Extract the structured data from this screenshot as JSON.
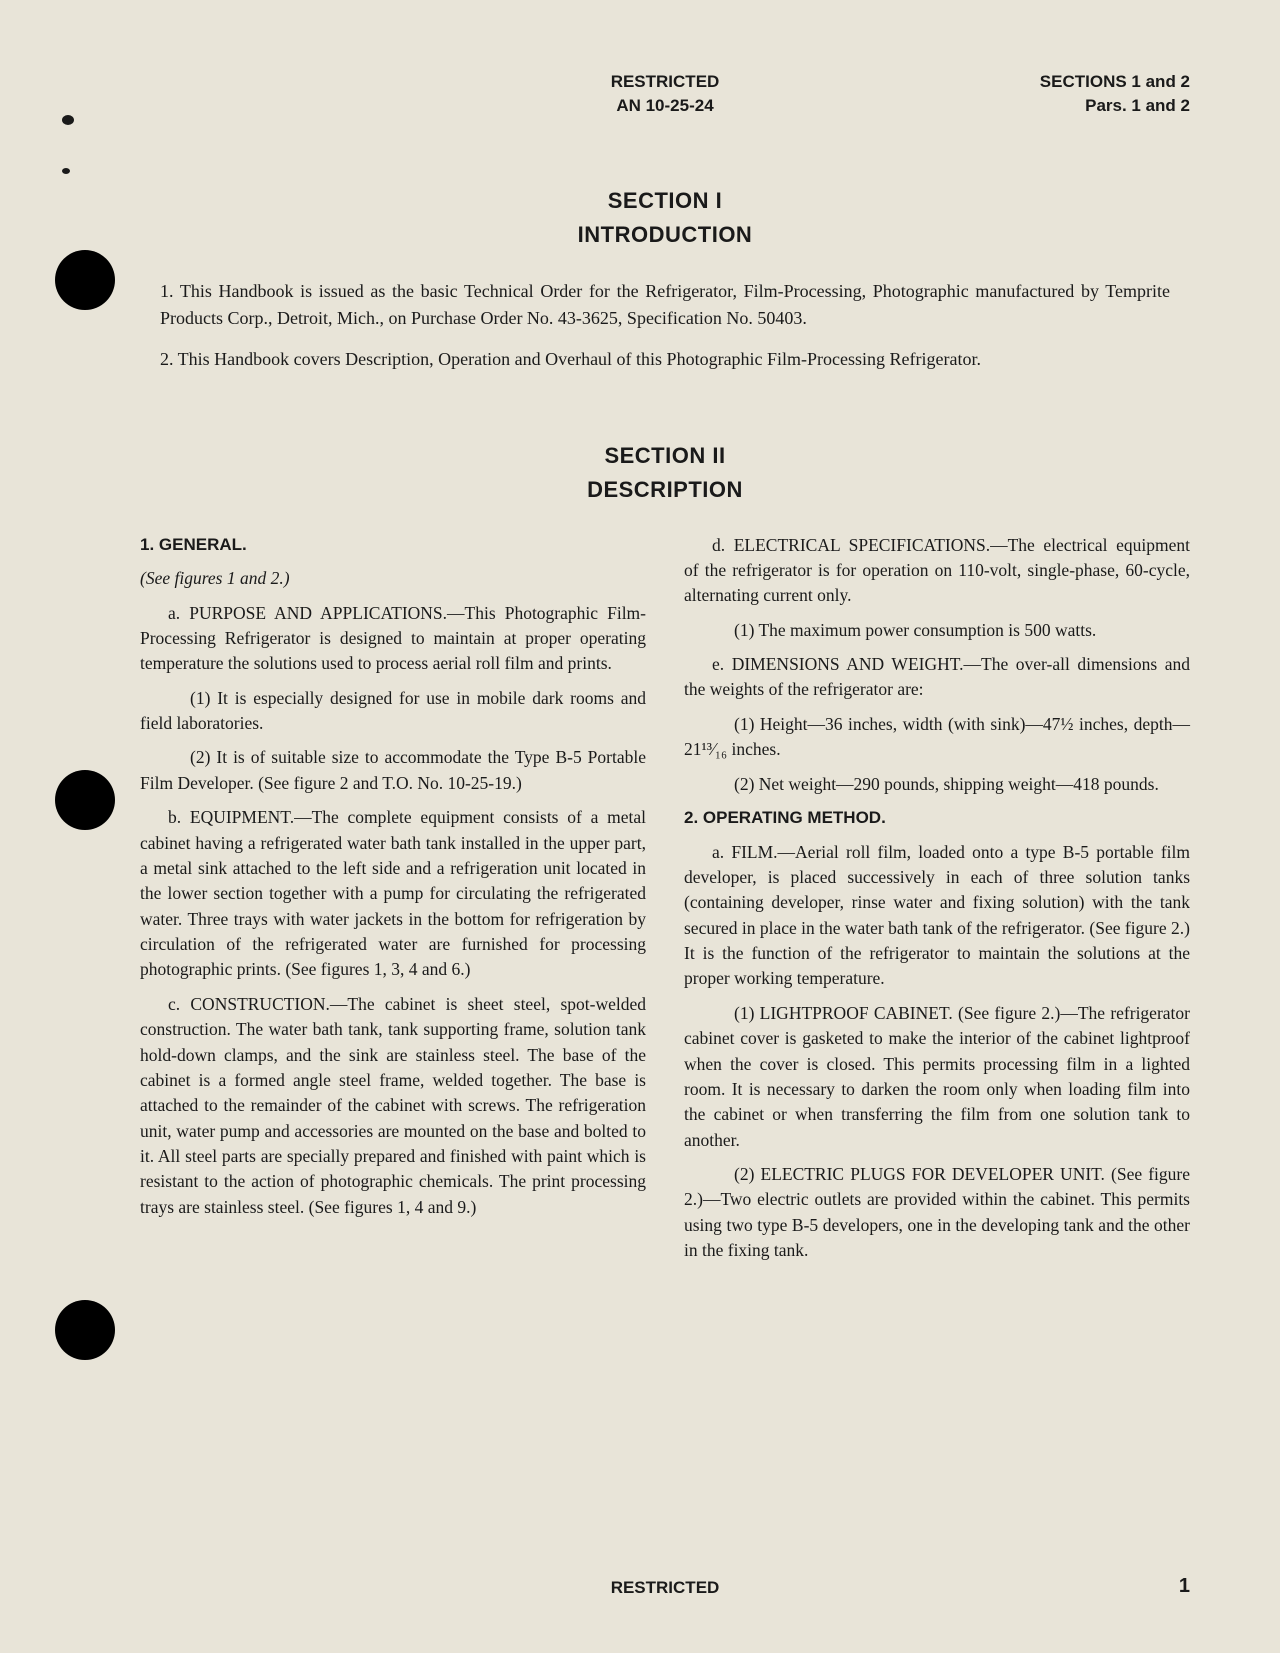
{
  "header": {
    "center_line1": "RESTRICTED",
    "center_line2": "AN 10-25-24",
    "right_line1": "SECTIONS 1 and 2",
    "right_line2": "Pars. 1 and 2"
  },
  "section1": {
    "title": "SECTION I",
    "subtitle": "INTRODUCTION",
    "para1": "1. This Handbook is issued as the basic Technical Order for the Refrigerator, Film-Processing, Photographic manufactured by Temprite Products Corp., Detroit, Mich., on Purchase Order No. 43-3625, Specification No. 50403.",
    "para2": "2. This Handbook covers Description, Operation and Overhaul of this Photographic Film-Processing Refrigerator."
  },
  "section2": {
    "title": "SECTION II",
    "subtitle": "DESCRIPTION"
  },
  "left": {
    "h1": "1. GENERAL.",
    "seefig": "(See figures 1 and 2.)",
    "a": "a. PURPOSE AND APPLICATIONS.—This Photographic Film-Processing Refrigerator is designed to maintain at proper operating temperature the solutions used to process aerial roll film and prints.",
    "a1": "(1) It is especially designed for use in mobile dark rooms and field laboratories.",
    "a2": "(2) It is of suitable size to accommodate the Type B-5 Portable Film Developer. (See figure 2 and T.O. No. 10-25-19.)",
    "b": "b. EQUIPMENT.—The complete equipment consists of a metal cabinet having a refrigerated water bath tank installed in the upper part, a metal sink attached to the left side and a refrigeration unit located in the lower section together with a pump for circulating the refrigerated water. Three trays with water jackets in the bottom for refrigeration by circulation of the refrigerated water are furnished for processing photographic prints. (See figures 1, 3, 4 and 6.)",
    "c": "c. CONSTRUCTION.—The cabinet is sheet steel, spot-welded construction. The water bath tank, tank supporting frame, solution tank hold-down clamps, and the sink are stainless steel. The base of the cabinet is a formed angle steel frame, welded together. The base is attached to the remainder of the cabinet with screws. The refrigeration unit, water pump and accessories are mounted on the base and bolted to it. All steel parts are specially prepared and finished with paint which is resistant to the action of photographic chemicals. The print processing trays are stainless steel. (See figures 1, 4 and 9.)"
  },
  "right": {
    "d": "d. ELECTRICAL SPECIFICATIONS.—The electrical equipment of the refrigerator is for operation on 110-volt, single-phase, 60-cycle, alternating current only.",
    "d1": "(1) The maximum power consumption is 500 watts.",
    "e": "e. DIMENSIONS AND WEIGHT.—The over-all dimensions and the weights of the refrigerator are:",
    "e1": "(1) Height—36 inches, width (with sink)—47½ inches, depth—21¹³⁄₁₆ inches.",
    "e2": "(2) Net weight—290 pounds, shipping weight—418 pounds.",
    "h2": "2. OPERATING METHOD.",
    "a": "a. FILM.—Aerial roll film, loaded onto a type B-5 portable film developer, is placed successively in each of three solution tanks (containing developer, rinse water and fixing solution) with the tank secured in place in the water bath tank of the refrigerator. (See figure 2.) It is the function of the refrigerator to maintain the solutions at the proper working temperature.",
    "a1": "(1) LIGHTPROOF CABINET. (See figure 2.)—The refrigerator cabinet cover is gasketed to make the interior of the cabinet lightproof when the cover is closed. This permits processing film in a lighted room. It is necessary to darken the room only when loading film into the cabinet or when transferring the film from one solution tank to another.",
    "a2": "(2) ELECTRIC PLUGS FOR DEVELOPER UNIT. (See figure 2.)—Two electric outlets are provided within the cabinet. This permits using two type B-5 developers, one in the developing tank and the other in the fixing tank."
  },
  "footer": {
    "center": "RESTRICTED",
    "page": "1"
  }
}
